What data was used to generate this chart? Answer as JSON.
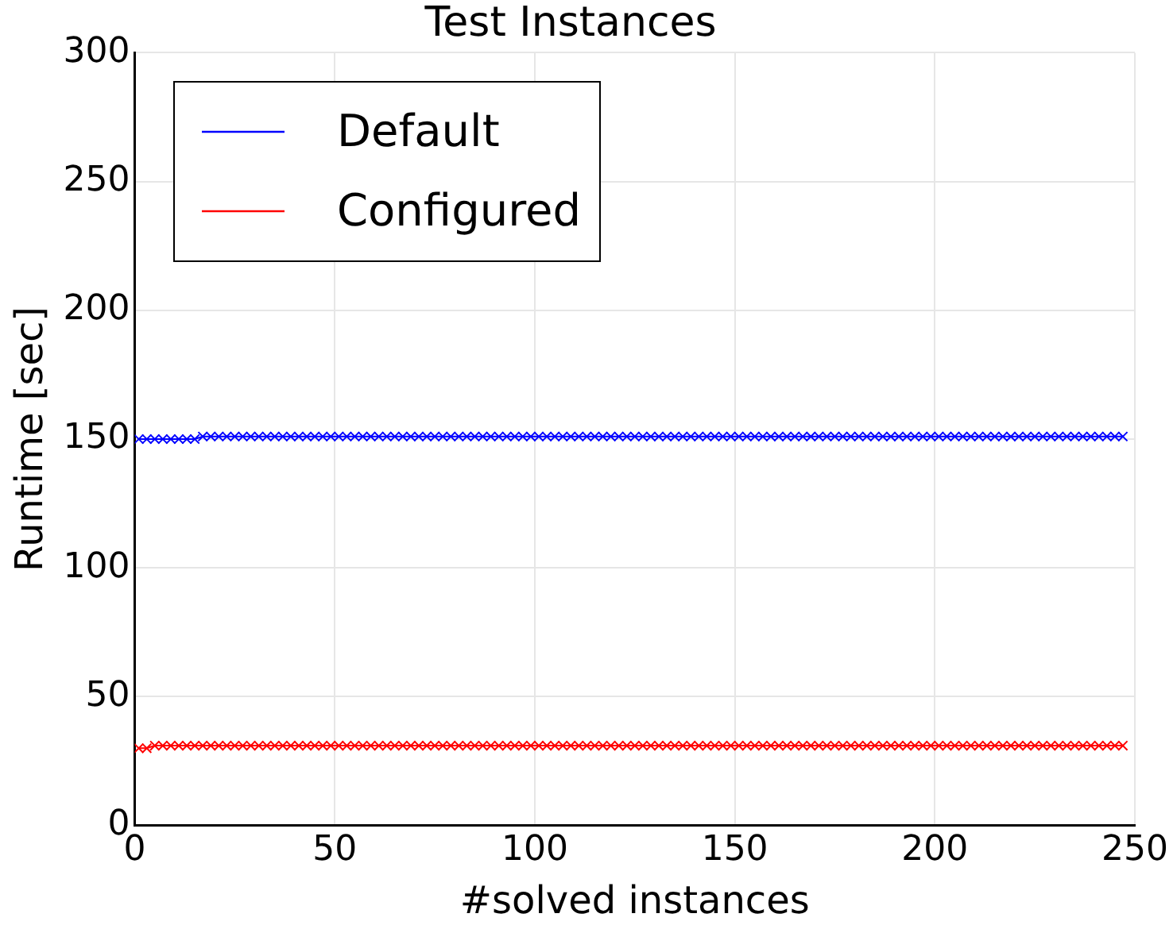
{
  "chart_data": {
    "type": "line",
    "title": "Test Instances",
    "xlabel": "#solved instances",
    "ylabel": "Runtime [sec]",
    "x": [
      1,
      3,
      5,
      7,
      9,
      11,
      13,
      15,
      17,
      19,
      21,
      23,
      25,
      27,
      29,
      31,
      33,
      35,
      37,
      39,
      41,
      43,
      45,
      47,
      49,
      51,
      53,
      55,
      57,
      59,
      61,
      63,
      65,
      67,
      69,
      71,
      73,
      75,
      77,
      79,
      81,
      83,
      85,
      87,
      89,
      91,
      93,
      95,
      97,
      99,
      101,
      103,
      105,
      107,
      109,
      111,
      113,
      115,
      117,
      119,
      121,
      123,
      125,
      127,
      129,
      131,
      133,
      135,
      137,
      139,
      141,
      143,
      145,
      147,
      149,
      151,
      153,
      155,
      157,
      159,
      161,
      163,
      165,
      167,
      169,
      171,
      173,
      175,
      177,
      179,
      181,
      183,
      185,
      187,
      189,
      191,
      193,
      195,
      197,
      199,
      201,
      203,
      205,
      207,
      209,
      211,
      213,
      215,
      217,
      219,
      221,
      223,
      225,
      227,
      229,
      231,
      233,
      235,
      237,
      239,
      241,
      243,
      245,
      247
    ],
    "series": [
      {
        "name": "Default",
        "color": "#0000ff",
        "values": [
          150,
          150,
          150,
          150,
          150,
          150,
          150,
          150,
          151,
          151,
          151,
          151,
          151,
          151,
          151,
          151,
          151,
          151,
          151,
          151,
          151,
          151,
          151,
          151,
          151,
          151,
          151,
          151,
          151,
          151,
          151,
          151,
          151,
          151,
          151,
          151,
          151,
          151,
          151,
          151,
          151,
          151,
          151,
          151,
          151,
          151,
          151,
          151,
          151,
          151,
          151,
          151,
          151,
          151,
          151,
          151,
          151,
          151,
          151,
          151,
          151,
          151,
          151,
          151,
          151,
          151,
          151,
          151,
          151,
          151,
          151,
          151,
          151,
          151,
          151,
          151,
          151,
          151,
          151,
          151,
          151,
          151,
          151,
          151,
          151,
          151,
          151,
          151,
          151,
          151,
          151,
          151,
          151,
          151,
          151,
          151,
          151,
          151,
          151,
          151,
          151,
          151,
          151,
          151,
          151,
          151,
          151,
          151,
          151,
          151,
          151,
          151,
          151,
          151,
          151,
          151,
          151,
          151,
          151,
          151,
          151,
          151,
          151,
          151
        ]
      },
      {
        "name": "Configured",
        "color": "#ff0000",
        "values": [
          30,
          30,
          31,
          31,
          31,
          31,
          31,
          31,
          31,
          31,
          31,
          31,
          31,
          31,
          31,
          31,
          31,
          31,
          31,
          31,
          31,
          31,
          31,
          31,
          31,
          31,
          31,
          31,
          31,
          31,
          31,
          31,
          31,
          31,
          31,
          31,
          31,
          31,
          31,
          31,
          31,
          31,
          31,
          31,
          31,
          31,
          31,
          31,
          31,
          31,
          31,
          31,
          31,
          31,
          31,
          31,
          31,
          31,
          31,
          31,
          31,
          31,
          31,
          31,
          31,
          31,
          31,
          31,
          31,
          31,
          31,
          31,
          31,
          31,
          31,
          31,
          31,
          31,
          31,
          31,
          31,
          31,
          31,
          31,
          31,
          31,
          31,
          31,
          31,
          31,
          31,
          31,
          31,
          31,
          31,
          31,
          31,
          31,
          31,
          31,
          31,
          31,
          31,
          31,
          31,
          31,
          31,
          31,
          31,
          31,
          31,
          31,
          31,
          31,
          31,
          31,
          31,
          31,
          31,
          31,
          31,
          31,
          31,
          31
        ]
      }
    ],
    "xlim": [
      0,
      250
    ],
    "xticks": [
      0,
      50,
      100,
      150,
      200,
      250
    ],
    "ylim": [
      0,
      300
    ],
    "yticks": [
      0,
      50,
      100,
      150,
      200,
      250,
      300
    ],
    "grid": true,
    "legend": "top left",
    "marker": "cross",
    "line_style": "solid"
  }
}
